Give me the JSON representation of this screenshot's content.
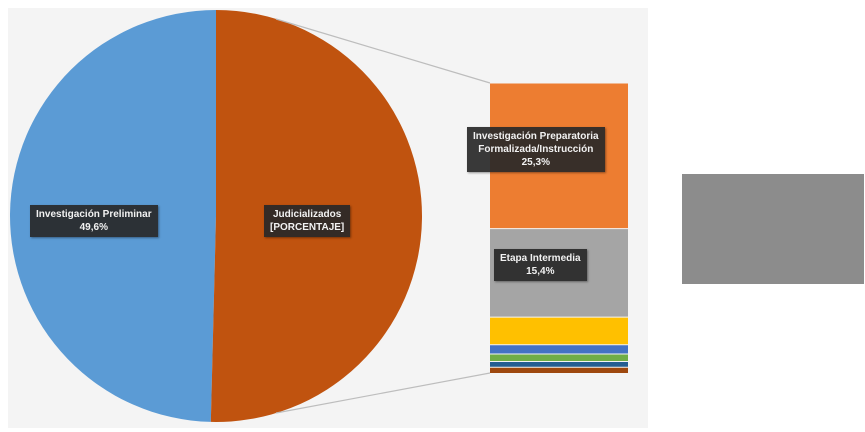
{
  "chart_data": {
    "type": "bar-of-pie",
    "pie": {
      "slices": [
        {
          "name": "Investigación Preliminar",
          "value": 49.6,
          "value_label": "49,6%",
          "color": "#5b9bd5"
        },
        {
          "name": "Judicializados",
          "value": 50.4,
          "value_label": "[PORCENTAJE]",
          "color": "#c0530f"
        }
      ]
    },
    "stacked_bar": {
      "parent": "Judicializados",
      "segments": [
        {
          "name": "Investigación Preparatoria Formalizada/Instrucción",
          "value": 25.3,
          "value_label": "25,3%",
          "color": "#ed7d31"
        },
        {
          "name": "Etapa Intermedia",
          "value": 15.4,
          "value_label": "15,4%",
          "color": "#a5a5a5"
        },
        {
          "name": "",
          "value": 4.8,
          "color": "#ffc000"
        },
        {
          "name": "",
          "value": 1.6,
          "color": "#4472c4"
        },
        {
          "name": "",
          "value": 1.3,
          "color": "#70ad47"
        },
        {
          "name": "",
          "value": 1.0,
          "color": "#255e91"
        },
        {
          "name": "",
          "value": 1.0,
          "color": "#9e480e"
        }
      ]
    },
    "labels": [
      {
        "id": "preliminar",
        "lines": [
          "Investigación Preliminar",
          "49,6%"
        ]
      },
      {
        "id": "judicializados",
        "lines": [
          "Judicializados",
          "[PORCENTAJE]"
        ]
      },
      {
        "id": "preparatoria",
        "lines": [
          "Investigación Preparatoria",
          "Formalizada/Instrucción",
          "25,3%"
        ]
      },
      {
        "id": "intermedia",
        "lines": [
          "Etapa Intermedia",
          "15,4%"
        ]
      }
    ],
    "connector_color": "#bdbdbd",
    "legend": "none"
  },
  "side_block": {
    "color": "#8c8c8c"
  }
}
